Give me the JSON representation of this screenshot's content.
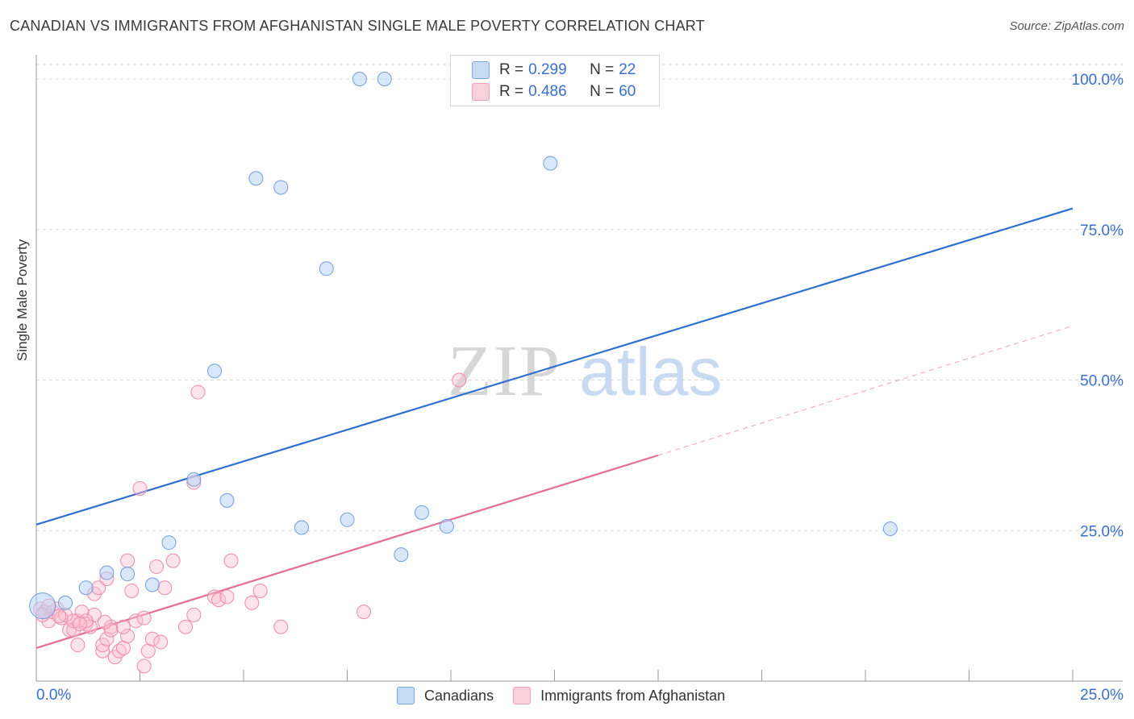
{
  "title": "CANADIAN VS IMMIGRANTS FROM AFGHANISTAN SINGLE MALE POVERTY CORRELATION CHART",
  "source": "Source: ZipAtlas.com",
  "watermark": {
    "zip": "ZIP",
    "atlas": "atlas"
  },
  "legend": {
    "series": [
      {
        "r_label": "R =",
        "r_value": "0.299",
        "n_label": "N =",
        "n_value": "22",
        "fill": "#b9d3f5",
        "stroke": "#6e9fe0"
      },
      {
        "r_label": "R =",
        "r_value": "0.486",
        "n_label": "N =",
        "n_value": "60",
        "fill": "#fac2d3",
        "stroke": "#ee8aaa"
      }
    ]
  },
  "bottom_legend": {
    "items": [
      "Canadians",
      "Immigrants from Afghanistan"
    ]
  },
  "colors": {
    "blue_line": "#2f6fcf",
    "pink_line": "#e46d94",
    "axis_text": "#3a6fd0",
    "grid": "#d8d8d8"
  },
  "chart_data": {
    "type": "scatter",
    "title": "CANADIAN VS IMMIGRANTS FROM AFGHANISTAN SINGLE MALE POVERTY CORRELATION CHART",
    "xlabel": "",
    "ylabel": "Single Male Poverty",
    "xlim": [
      0,
      25
    ],
    "ylim": [
      0,
      100
    ],
    "x_tick_labels": {
      "left": "0.0%",
      "right": "25.0%"
    },
    "y_ticks": [
      25,
      50,
      75,
      100
    ],
    "y_tick_labels": [
      "25.0%",
      "50.0%",
      "75.0%",
      "100.0%"
    ],
    "series": [
      {
        "name": "Canadians",
        "points": [
          [
            0.15,
            12.5,
            3
          ],
          [
            0.7,
            13.0,
            1
          ],
          [
            1.2,
            15.5,
            1
          ],
          [
            1.7,
            18.0,
            1
          ],
          [
            2.2,
            17.8,
            1
          ],
          [
            2.8,
            16.0,
            1
          ],
          [
            3.2,
            23.0,
            1
          ],
          [
            3.8,
            33.5,
            1
          ],
          [
            4.3,
            51.5,
            1
          ],
          [
            4.6,
            30.0,
            1
          ],
          [
            5.3,
            83.5,
            1
          ],
          [
            5.9,
            82.0,
            1
          ],
          [
            6.4,
            25.5,
            1
          ],
          [
            7.0,
            68.5,
            1
          ],
          [
            7.5,
            26.8,
            1
          ],
          [
            7.8,
            100.0,
            1
          ],
          [
            8.4,
            100.0,
            1
          ],
          [
            8.8,
            21.0,
            1
          ],
          [
            9.3,
            28.0,
            1
          ],
          [
            9.9,
            25.7,
            1
          ],
          [
            12.4,
            86.0,
            1
          ],
          [
            20.6,
            25.3,
            1
          ]
        ],
        "trend": {
          "x0": 0,
          "y0": 26.0,
          "x1": 25,
          "y1": 78.5
        }
      },
      {
        "name": "Immigrants from Afghanistan",
        "points": [
          [
            0.1,
            12.0,
            1
          ],
          [
            0.2,
            11.5,
            1
          ],
          [
            0.3,
            10.0,
            1
          ],
          [
            0.4,
            11.5,
            1
          ],
          [
            0.5,
            12.0,
            1
          ],
          [
            0.6,
            10.5,
            1
          ],
          [
            0.7,
            11.0,
            1
          ],
          [
            0.8,
            8.5,
            1
          ],
          [
            0.9,
            8.5,
            1
          ],
          [
            1.0,
            6.0,
            1
          ],
          [
            1.0,
            10.0,
            1
          ],
          [
            1.1,
            11.5,
            1
          ],
          [
            1.2,
            9.5,
            1
          ],
          [
            1.3,
            9.0,
            1
          ],
          [
            1.4,
            14.5,
            1
          ],
          [
            1.4,
            11.0,
            1
          ],
          [
            1.5,
            15.5,
            1
          ],
          [
            1.6,
            5.0,
            1
          ],
          [
            1.6,
            6.0,
            1
          ],
          [
            1.7,
            17.0,
            1
          ],
          [
            1.7,
            7.0,
            1
          ],
          [
            1.8,
            9.0,
            1
          ],
          [
            1.8,
            8.5,
            1
          ],
          [
            1.9,
            4.0,
            1
          ],
          [
            2.0,
            5.0,
            1
          ],
          [
            2.1,
            5.5,
            1
          ],
          [
            2.2,
            7.5,
            1
          ],
          [
            2.2,
            20.0,
            1
          ],
          [
            2.3,
            15.0,
            1
          ],
          [
            2.4,
            10.0,
            1
          ],
          [
            2.5,
            32.0,
            1
          ],
          [
            2.6,
            2.5,
            1
          ],
          [
            2.6,
            10.5,
            1
          ],
          [
            2.7,
            5.0,
            1
          ],
          [
            2.8,
            7.0,
            1
          ],
          [
            2.9,
            19.0,
            1
          ],
          [
            3.0,
            6.5,
            1
          ],
          [
            3.1,
            15.5,
            1
          ],
          [
            3.3,
            20.0,
            1
          ],
          [
            3.6,
            9.0,
            1
          ],
          [
            3.8,
            11.0,
            1
          ],
          [
            3.8,
            33.0,
            1
          ],
          [
            3.9,
            48.0,
            1
          ],
          [
            4.3,
            14.0,
            1
          ],
          [
            4.4,
            13.5,
            1
          ],
          [
            4.6,
            14.0,
            1
          ],
          [
            4.7,
            20.0,
            1
          ],
          [
            5.2,
            13.0,
            1
          ],
          [
            5.4,
            15.0,
            1
          ],
          [
            5.9,
            9.0,
            1
          ],
          [
            7.9,
            11.5,
            1
          ],
          [
            10.2,
            50.0,
            1
          ],
          [
            0.3,
            12.5,
            1
          ],
          [
            0.9,
            10.0,
            1
          ],
          [
            1.2,
            10.0,
            1
          ],
          [
            2.1,
            9.0,
            1
          ],
          [
            0.15,
            11.0,
            1
          ],
          [
            0.55,
            10.8,
            1
          ],
          [
            1.05,
            9.5,
            1
          ],
          [
            1.65,
            9.8,
            1
          ]
        ],
        "trend": {
          "x0": 0,
          "y0": 5.5,
          "x1": 15,
          "y1": 37.5
        },
        "trend_extension": {
          "x0": 15,
          "y0": 37.5,
          "x1": 25,
          "y1": 59.0
        }
      }
    ]
  }
}
